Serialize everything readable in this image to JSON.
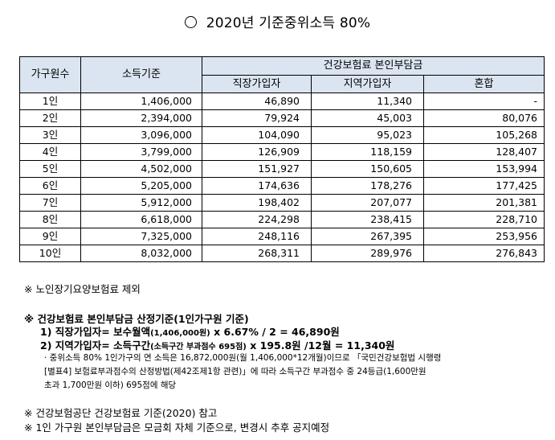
{
  "title": "2020년 기준중위소득 80%",
  "table": {
    "header": {
      "household": "가구원수",
      "income": "소득기준",
      "premium_group": "건강보험료 본인부담금",
      "workplace": "직장가입자",
      "regional": "지역가입자",
      "mixed": "혼합"
    },
    "rows": [
      {
        "household": "1인",
        "income": "1,406,000",
        "workplace": "46,890",
        "regional": "11,340",
        "mixed": "-"
      },
      {
        "household": "2인",
        "income": "2,394,000",
        "workplace": "79,924",
        "regional": "45,003",
        "mixed": "80,076"
      },
      {
        "household": "3인",
        "income": "3,096,000",
        "workplace": "104,090",
        "regional": "95,023",
        "mixed": "105,268"
      },
      {
        "household": "4인",
        "income": "3,799,000",
        "workplace": "126,909",
        "regional": "118,159",
        "mixed": "128,407"
      },
      {
        "household": "5인",
        "income": "4,502,000",
        "workplace": "151,927",
        "regional": "150,605",
        "mixed": "153,994"
      },
      {
        "household": "6인",
        "income": "5,205,000",
        "workplace": "174,636",
        "regional": "178,276",
        "mixed": "177,425"
      },
      {
        "household": "7인",
        "income": "5,912,000",
        "workplace": "198,402",
        "regional": "207,077",
        "mixed": "201,381"
      },
      {
        "household": "8인",
        "income": "6,618,000",
        "workplace": "224,298",
        "regional": "238,415",
        "mixed": "228,710"
      },
      {
        "household": "9인",
        "income": "7,325,000",
        "workplace": "248,116",
        "regional": "267,395",
        "mixed": "253,956"
      },
      {
        "household": "10인",
        "income": "8,032,000",
        "workplace": "268,311",
        "regional": "289,976",
        "mixed": "276,843"
      }
    ]
  },
  "notes": {
    "note1": "※ 노인장기요양보험료 제외",
    "note2": "※ 건강보험료 본인부담금 산정기준(1인가구원 기준)",
    "note3_a": "1) 직장가입자= 보수월액",
    "note3_b": "(1,406,000원)",
    "note3_c": " x 6.67% / 2 = 46,890원",
    "note4_a": "2) 지역가입자= 소득구간",
    "note4_b": "(소득구간 부과점수 695점)",
    "note4_c": " x 195.8원 /12월 = 11,340원",
    "fine1": "· 중위소득 80% 1인가구의 연 소득은 16,872,000원(월 1,406,000*12개월)이므로 「국민건강보험법 시행령",
    "fine2": "[별표4] 보험료부과점수의 산정방법(제42조제1항 관련)」에 따라 소득구간 부과점수 중 24등급(1,600만원",
    "fine3": "초과 1,700만원 이하) 695점에 해당",
    "note5": "※ 건강보험공단 건강보험료 기준(2020) 참고",
    "note6": "※ 1인 가구원 본인부담금은 모금회 자체 기준으로, 변경시 추후 공지예정"
  }
}
